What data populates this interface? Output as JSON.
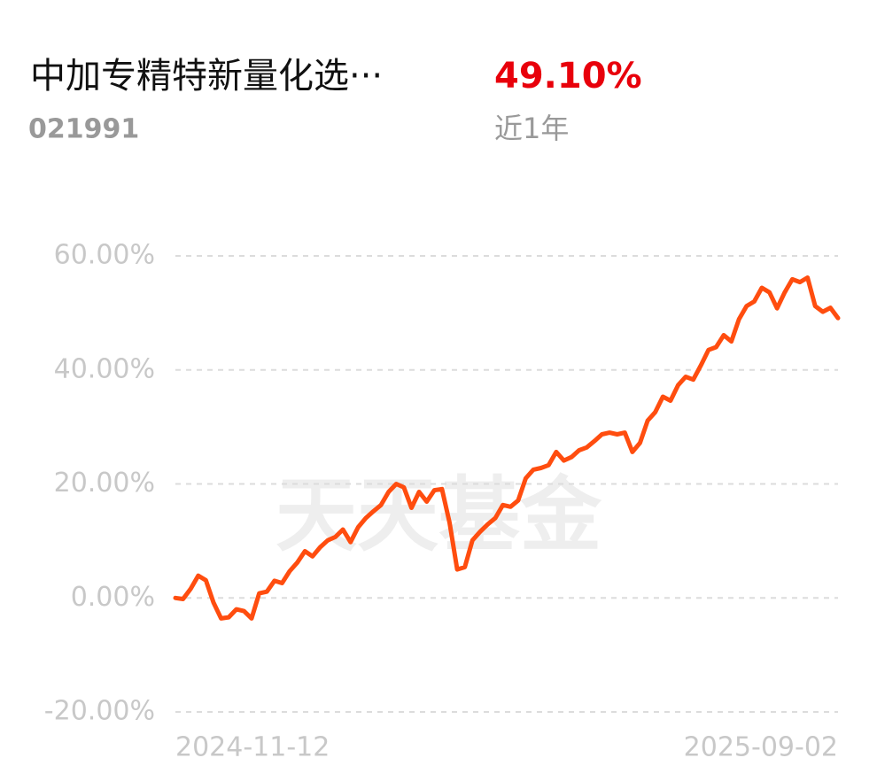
{
  "header": {
    "title": "中加专精特新量化选···",
    "code": "021991",
    "return": "49.10%",
    "period": "近1年"
  },
  "chart_data": {
    "type": "line",
    "watermark": "天天基金",
    "color": "#ff4d0f",
    "grid": true,
    "ylim": [
      -20,
      60
    ],
    "yticks": [
      {
        "value": -20,
        "label": "-20.00%"
      },
      {
        "value": 0,
        "label": "0.00%"
      },
      {
        "value": 20,
        "label": "20.00%"
      },
      {
        "value": 40,
        "label": "40.00%"
      },
      {
        "value": 60,
        "label": "60.00%"
      }
    ],
    "categories": [
      "2024-11-12",
      null,
      null,
      null,
      null,
      null,
      null,
      null,
      null,
      null,
      null,
      null,
      null,
      null,
      null,
      null,
      null,
      null,
      null,
      null,
      null,
      null,
      null,
      null,
      null,
      null,
      null,
      null,
      null,
      null,
      null,
      null,
      null,
      null,
      null,
      null,
      null,
      null,
      null,
      null,
      null,
      null,
      null,
      null,
      null,
      null,
      null,
      null,
      null,
      null,
      null,
      null,
      null,
      null,
      null,
      null,
      null,
      null,
      null,
      null,
      null,
      null,
      null,
      null,
      null,
      null,
      null,
      null,
      null,
      null,
      null,
      null,
      null,
      null,
      null,
      null,
      null,
      null,
      null,
      null,
      null,
      null,
      null,
      null,
      null,
      null,
      null,
      "2025-09-02"
    ],
    "values": [
      0,
      -0.2,
      1.6,
      3.9,
      3.1,
      -0.8,
      -3.6,
      -3.4,
      -2.0,
      -2.3,
      -3.6,
      0.8,
      1.1,
      3.0,
      2.6,
      4.7,
      6.2,
      8.2,
      7.3,
      8.9,
      10.1,
      10.7,
      12.0,
      9.8,
      12.4,
      14.0,
      15.2,
      16.3,
      18.6,
      20.0,
      19.4,
      15.8,
      18.6,
      16.9,
      18.9,
      19.1,
      13.2,
      5.0,
      5.4,
      10.1,
      11.6,
      12.9,
      14.0,
      16.3,
      16.0,
      17.1,
      21.0,
      22.5,
      22.8,
      23.3,
      25.6,
      24.1,
      24.7,
      25.9,
      26.4,
      27.5,
      28.7,
      29.0,
      28.7,
      29.0,
      25.6,
      27.2,
      31.1,
      32.6,
      35.3,
      34.6,
      37.3,
      38.8,
      38.3,
      40.8,
      43.5,
      44.0,
      46.1,
      45.0,
      48.9,
      51.2,
      52.0,
      54.4,
      53.6,
      50.8,
      53.6,
      55.9,
      55.4,
      56.2,
      51.2,
      50.2,
      50.9,
      49.1
    ]
  }
}
